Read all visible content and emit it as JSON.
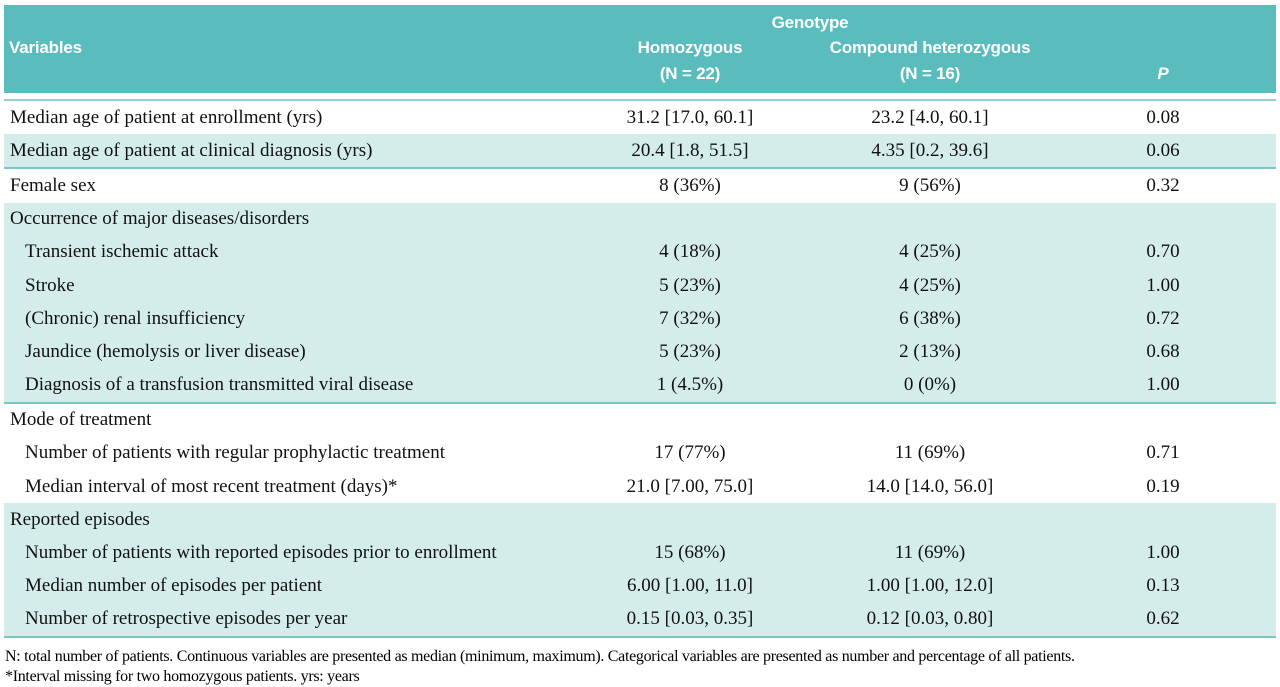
{
  "table": {
    "header": {
      "genotype_label": "Genotype",
      "variables_label": "Variables",
      "homozygous_label": "Homozygous",
      "homozygous_n": "(N = 22)",
      "compound_label": "Compound heterozygous",
      "compound_n": "(N = 16)",
      "p_label": "P"
    },
    "blocks": [
      {
        "bg": "white",
        "rows": [
          {
            "label": "Median age of patient at enrollment (yrs)",
            "indent": false,
            "homozygous": "31.2 [17.0, 60.1]",
            "compound": "23.2 [4.0, 60.1]",
            "p": "0.08"
          }
        ]
      },
      {
        "bg": "teal",
        "rows": [
          {
            "label": "Median age of patient at clinical diagnosis (yrs)",
            "indent": false,
            "homozygous": "20.4 [1.8, 51.5]",
            "compound": "4.35 [0.2, 39.6]",
            "p": "0.06"
          }
        ]
      },
      {
        "bg": "white",
        "rows": [
          {
            "label": "Female sex",
            "indent": false,
            "homozygous": "8 (36%)",
            "compound": "9 (56%)",
            "p": "0.32"
          }
        ]
      },
      {
        "bg": "teal",
        "rows": [
          {
            "label": "Occurrence of major diseases/disorders",
            "indent": false,
            "homozygous": "",
            "compound": "",
            "p": ""
          },
          {
            "label": "Transient ischemic attack",
            "indent": true,
            "homozygous": "4 (18%)",
            "compound": "4 (25%)",
            "p": "0.70"
          },
          {
            "label": "Stroke",
            "indent": true,
            "homozygous": "5 (23%)",
            "compound": "4 (25%)",
            "p": "1.00"
          },
          {
            "label": "(Chronic) renal insufficiency",
            "indent": true,
            "homozygous": "7 (32%)",
            "compound": "6 (38%)",
            "p": "0.72"
          },
          {
            "label": "Jaundice (hemolysis or liver disease)",
            "indent": true,
            "homozygous": "5 (23%)",
            "compound": "2 (13%)",
            "p": "0.68"
          },
          {
            "label": "Diagnosis of a transfusion transmitted viral disease",
            "indent": true,
            "homozygous": "1 (4.5%)",
            "compound": "0 (0%)",
            "p": "1.00"
          }
        ]
      },
      {
        "bg": "white",
        "rows": [
          {
            "label": "Mode of treatment",
            "indent": false,
            "homozygous": "",
            "compound": "",
            "p": ""
          },
          {
            "label": "Number of patients with regular prophylactic treatment",
            "indent": true,
            "homozygous": "17 (77%)",
            "compound": "11 (69%)",
            "p": "0.71"
          },
          {
            "label": "Median interval of most recent treatment (days)*",
            "indent": true,
            "homozygous": "21.0 [7.00, 75.0]",
            "compound": "14.0 [14.0, 56.0]",
            "p": "0.19"
          }
        ]
      },
      {
        "bg": "teal",
        "rows": [
          {
            "label": "Reported episodes",
            "indent": false,
            "homozygous": "",
            "compound": "",
            "p": ""
          },
          {
            "label": "Number of patients with reported episodes prior to enrollment",
            "indent": true,
            "homozygous": "15 (68%)",
            "compound": "11 (69%)",
            "p": "1.00"
          },
          {
            "label": "Median number of episodes per patient",
            "indent": true,
            "homozygous": "6.00 [1.00, 11.0]",
            "compound": "1.00 [1.00, 12.0]",
            "p": "0.13"
          },
          {
            "label": "Number of retrospective episodes per year",
            "indent": true,
            "homozygous": "0.15 [0.03, 0.35]",
            "compound": "0.12 [0.03, 0.80]",
            "p": "0.62"
          }
        ]
      }
    ],
    "footnotes": [
      "N: total number of patients. Continuous variables are presented as median (minimum, maximum). Categorical variables are presented as number and percentage of all patients.",
      "*Interval missing for two homozygous patients. yrs: years"
    ]
  },
  "colors": {
    "header_teal": "#5abcbd",
    "stripe_teal": "#d4edeb",
    "divider_teal": "#7bc6c5"
  }
}
